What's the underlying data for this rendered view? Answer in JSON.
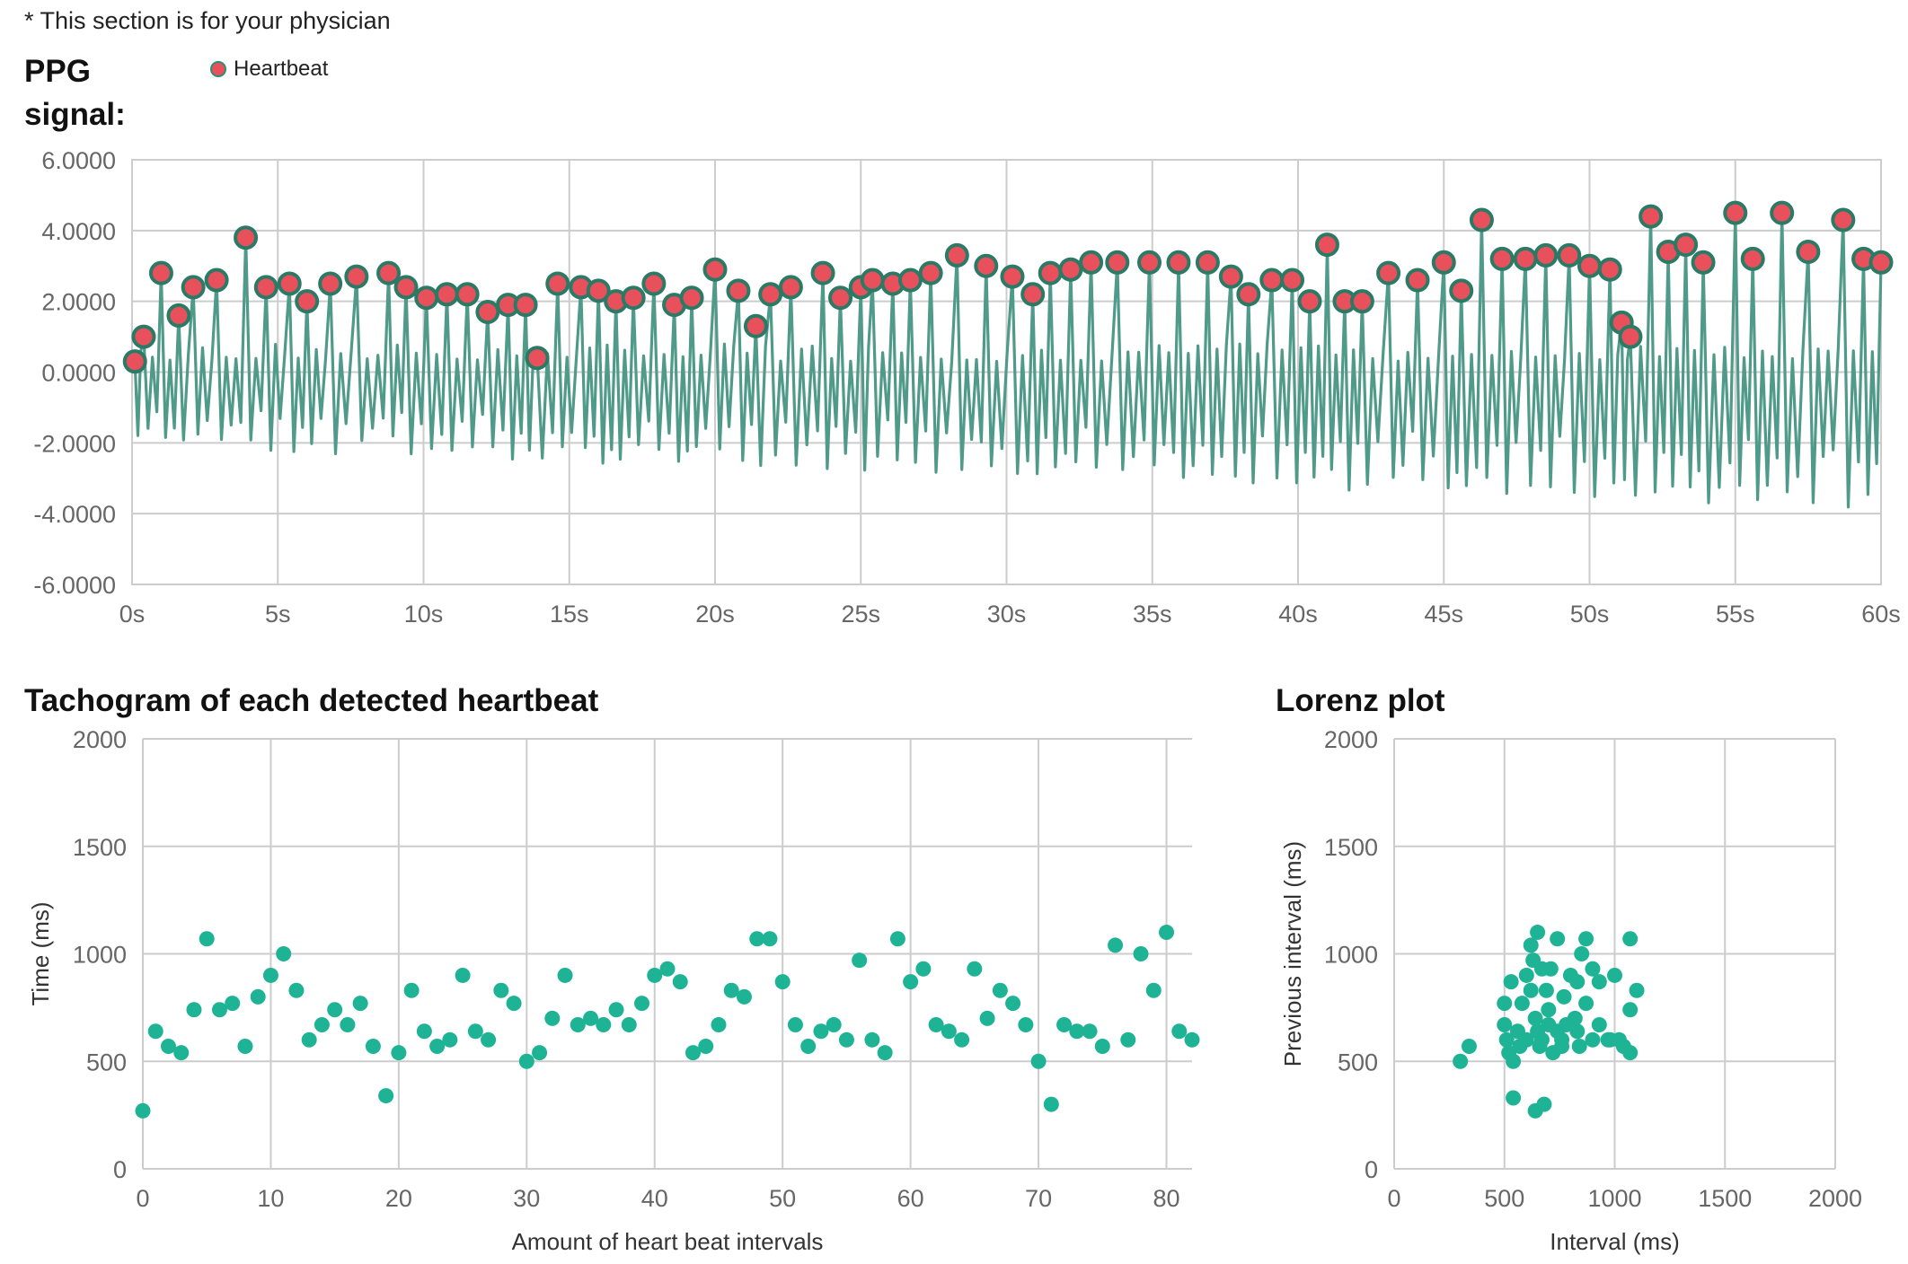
{
  "note": "* This section is for your physician",
  "colors": {
    "signal": "#4f9a88",
    "peak_fill": "#e8505b",
    "peak_stroke": "#2b7a66",
    "point": "#1fb396",
    "grid": "#cccccc",
    "axis_text": "#666666"
  },
  "ppg": {
    "title": "PPG signal:",
    "legend_label": "Heartbeat"
  },
  "tachogram": {
    "title": "Tachogram of each detected heartbeat"
  },
  "lorenz": {
    "title": "Lorenz plot"
  },
  "chart_data": [
    {
      "type": "line",
      "title": "PPG signal:",
      "xlabel": "",
      "ylabel": "",
      "xlim": [
        0,
        60
      ],
      "ylim": [
        -6,
        6
      ],
      "x_ticks": [
        "0s",
        "5s",
        "10s",
        "15s",
        "20s",
        "25s",
        "30s",
        "35s",
        "40s",
        "45s",
        "50s",
        "55s",
        "60s"
      ],
      "y_ticks": [
        "6.0000",
        "4.0000",
        "2.0000",
        "0.0000",
        "-2.0000",
        "-4.0000",
        "-6.0000"
      ],
      "grid": true,
      "legend": "top-left",
      "series": [
        {
          "name": "Heartbeat",
          "marker": "circle",
          "peaks": [
            [
              0.1,
              0.3
            ],
            [
              0.4,
              1.0
            ],
            [
              1.0,
              2.8
            ],
            [
              1.6,
              1.6
            ],
            [
              2.1,
              2.4
            ],
            [
              2.9,
              2.6
            ],
            [
              3.9,
              3.8
            ],
            [
              4.6,
              2.4
            ],
            [
              5.4,
              2.5
            ],
            [
              6.0,
              2.0
            ],
            [
              6.8,
              2.5
            ],
            [
              7.7,
              2.7
            ],
            [
              8.8,
              2.8
            ],
            [
              9.4,
              2.4
            ],
            [
              10.1,
              2.1
            ],
            [
              10.8,
              2.2
            ],
            [
              11.5,
              2.2
            ],
            [
              12.2,
              1.7
            ],
            [
              12.9,
              1.9
            ],
            [
              13.5,
              1.9
            ],
            [
              13.9,
              0.4
            ],
            [
              14.6,
              2.5
            ],
            [
              15.4,
              2.4
            ],
            [
              16.0,
              2.3
            ],
            [
              16.6,
              2.0
            ],
            [
              17.2,
              2.1
            ],
            [
              17.9,
              2.5
            ],
            [
              18.6,
              1.9
            ],
            [
              19.2,
              2.1
            ],
            [
              20.0,
              2.9
            ],
            [
              20.8,
              2.3
            ],
            [
              21.4,
              1.3
            ],
            [
              21.9,
              2.2
            ],
            [
              22.6,
              2.4
            ],
            [
              23.7,
              2.8
            ],
            [
              24.3,
              2.1
            ],
            [
              25.0,
              2.4
            ],
            [
              25.4,
              2.6
            ],
            [
              26.1,
              2.5
            ],
            [
              26.7,
              2.6
            ],
            [
              27.4,
              2.8
            ],
            [
              28.3,
              3.3
            ],
            [
              29.3,
              3.0
            ],
            [
              30.2,
              2.7
            ],
            [
              30.9,
              2.2
            ],
            [
              31.5,
              2.8
            ],
            [
              32.2,
              2.9
            ],
            [
              32.9,
              3.1
            ],
            [
              33.8,
              3.1
            ],
            [
              34.9,
              3.1
            ],
            [
              35.9,
              3.1
            ],
            [
              36.9,
              3.1
            ],
            [
              37.7,
              2.7
            ],
            [
              38.3,
              2.2
            ],
            [
              39.1,
              2.6
            ],
            [
              39.8,
              2.6
            ],
            [
              40.4,
              2.0
            ],
            [
              41.0,
              3.6
            ],
            [
              41.6,
              2.0
            ],
            [
              42.2,
              2.0
            ],
            [
              43.1,
              2.8
            ],
            [
              44.1,
              2.6
            ],
            [
              45.0,
              3.1
            ],
            [
              45.6,
              2.3
            ],
            [
              46.3,
              4.3
            ],
            [
              47.0,
              3.2
            ],
            [
              47.8,
              3.2
            ],
            [
              48.5,
              3.3
            ],
            [
              49.3,
              3.3
            ],
            [
              50.0,
              3.0
            ],
            [
              50.7,
              2.9
            ],
            [
              51.1,
              1.4
            ],
            [
              51.4,
              1.0
            ],
            [
              52.1,
              4.4
            ],
            [
              52.7,
              3.4
            ],
            [
              53.3,
              3.6
            ],
            [
              53.9,
              3.1
            ],
            [
              55.0,
              4.5
            ],
            [
              55.6,
              3.2
            ],
            [
              56.6,
              4.5
            ],
            [
              57.5,
              3.4
            ],
            [
              58.7,
              4.3
            ],
            [
              59.4,
              3.2
            ],
            [
              60.0,
              3.1
            ]
          ]
        }
      ]
    },
    {
      "type": "scatter",
      "title": "Tachogram of each detected heartbeat",
      "xlabel": "Amount of heart beat intervals",
      "ylabel": "Time (ms)",
      "xlim": [
        0,
        82
      ],
      "ylim": [
        0,
        2000
      ],
      "x_ticks": [
        "0",
        "10",
        "20",
        "30",
        "40",
        "50",
        "60",
        "70",
        "80"
      ],
      "y_ticks": [
        "2000",
        "1500",
        "1000",
        "500",
        "0"
      ],
      "grid": true,
      "x": [
        0,
        1,
        2,
        3,
        4,
        5,
        6,
        7,
        8,
        9,
        10,
        11,
        12,
        13,
        14,
        15,
        16,
        17,
        18,
        19,
        20,
        21,
        22,
        23,
        24,
        25,
        26,
        27,
        28,
        29,
        30,
        31,
        32,
        33,
        34,
        35,
        36,
        37,
        38,
        39,
        40,
        41,
        42,
        43,
        44,
        45,
        46,
        47,
        48,
        49,
        50,
        51,
        52,
        53,
        54,
        55,
        56,
        57,
        58,
        59,
        60,
        61,
        62,
        63,
        64,
        65,
        66,
        67,
        68,
        69,
        70,
        71,
        72,
        73,
        74,
        75,
        76,
        77,
        78,
        79,
        80,
        81,
        82
      ],
      "y": [
        270,
        640,
        570,
        540,
        740,
        1070,
        740,
        770,
        570,
        800,
        900,
        1000,
        830,
        600,
        670,
        740,
        670,
        770,
        570,
        340,
        540,
        830,
        640,
        570,
        600,
        900,
        640,
        600,
        830,
        770,
        500,
        540,
        700,
        900,
        670,
        700,
        670,
        740,
        670,
        770,
        900,
        930,
        870,
        540,
        570,
        670,
        830,
        800,
        1070,
        1070,
        870,
        670,
        570,
        640,
        670,
        600,
        970,
        600,
        540,
        1070,
        870,
        930,
        670,
        640,
        600,
        930,
        700,
        830,
        770,
        670,
        500,
        300,
        670,
        640,
        640,
        570,
        1040,
        600,
        1000,
        830,
        1100,
        640,
        600
      ]
    },
    {
      "type": "scatter",
      "title": "Lorenz plot",
      "xlabel": "Interval (ms)",
      "ylabel": "Previous interval (ms)",
      "xlim": [
        0,
        2000
      ],
      "ylim": [
        0,
        2000
      ],
      "x_ticks": [
        "0",
        "500",
        "1000",
        "1500",
        "2000"
      ],
      "y_ticks": [
        "2000",
        "1500",
        "1000",
        "500",
        "0"
      ],
      "grid": true,
      "points": [
        [
          300,
          500
        ],
        [
          340,
          570
        ],
        [
          500,
          770
        ],
        [
          500,
          670
        ],
        [
          510,
          600
        ],
        [
          520,
          540
        ],
        [
          530,
          870
        ],
        [
          540,
          330
        ],
        [
          540,
          500
        ],
        [
          560,
          640
        ],
        [
          570,
          570
        ],
        [
          580,
          770
        ],
        [
          600,
          600
        ],
        [
          600,
          900
        ],
        [
          620,
          1040
        ],
        [
          620,
          830
        ],
        [
          630,
          970
        ],
        [
          640,
          700
        ],
        [
          640,
          270
        ],
        [
          650,
          1100
        ],
        [
          650,
          640
        ],
        [
          660,
          570
        ],
        [
          670,
          930
        ],
        [
          670,
          600
        ],
        [
          680,
          300
        ],
        [
          690,
          830
        ],
        [
          700,
          670
        ],
        [
          700,
          740
        ],
        [
          710,
          930
        ],
        [
          720,
          540
        ],
        [
          740,
          1070
        ],
        [
          740,
          640
        ],
        [
          760,
          570
        ],
        [
          770,
          800
        ],
        [
          780,
          670
        ],
        [
          800,
          900
        ],
        [
          830,
          640
        ],
        [
          830,
          870
        ],
        [
          840,
          570
        ],
        [
          850,
          1000
        ],
        [
          870,
          1070
        ],
        [
          870,
          770
        ],
        [
          900,
          600
        ],
        [
          900,
          930
        ],
        [
          930,
          870
        ],
        [
          930,
          670
        ],
        [
          970,
          600
        ],
        [
          1000,
          900
        ],
        [
          1040,
          570
        ],
        [
          1070,
          1070
        ],
        [
          1070,
          540
        ],
        [
          1070,
          740
        ],
        [
          1100,
          830
        ],
        [
          760,
          600
        ],
        [
          980,
          600
        ],
        [
          1020,
          600
        ],
        [
          820,
          700
        ]
      ]
    }
  ]
}
